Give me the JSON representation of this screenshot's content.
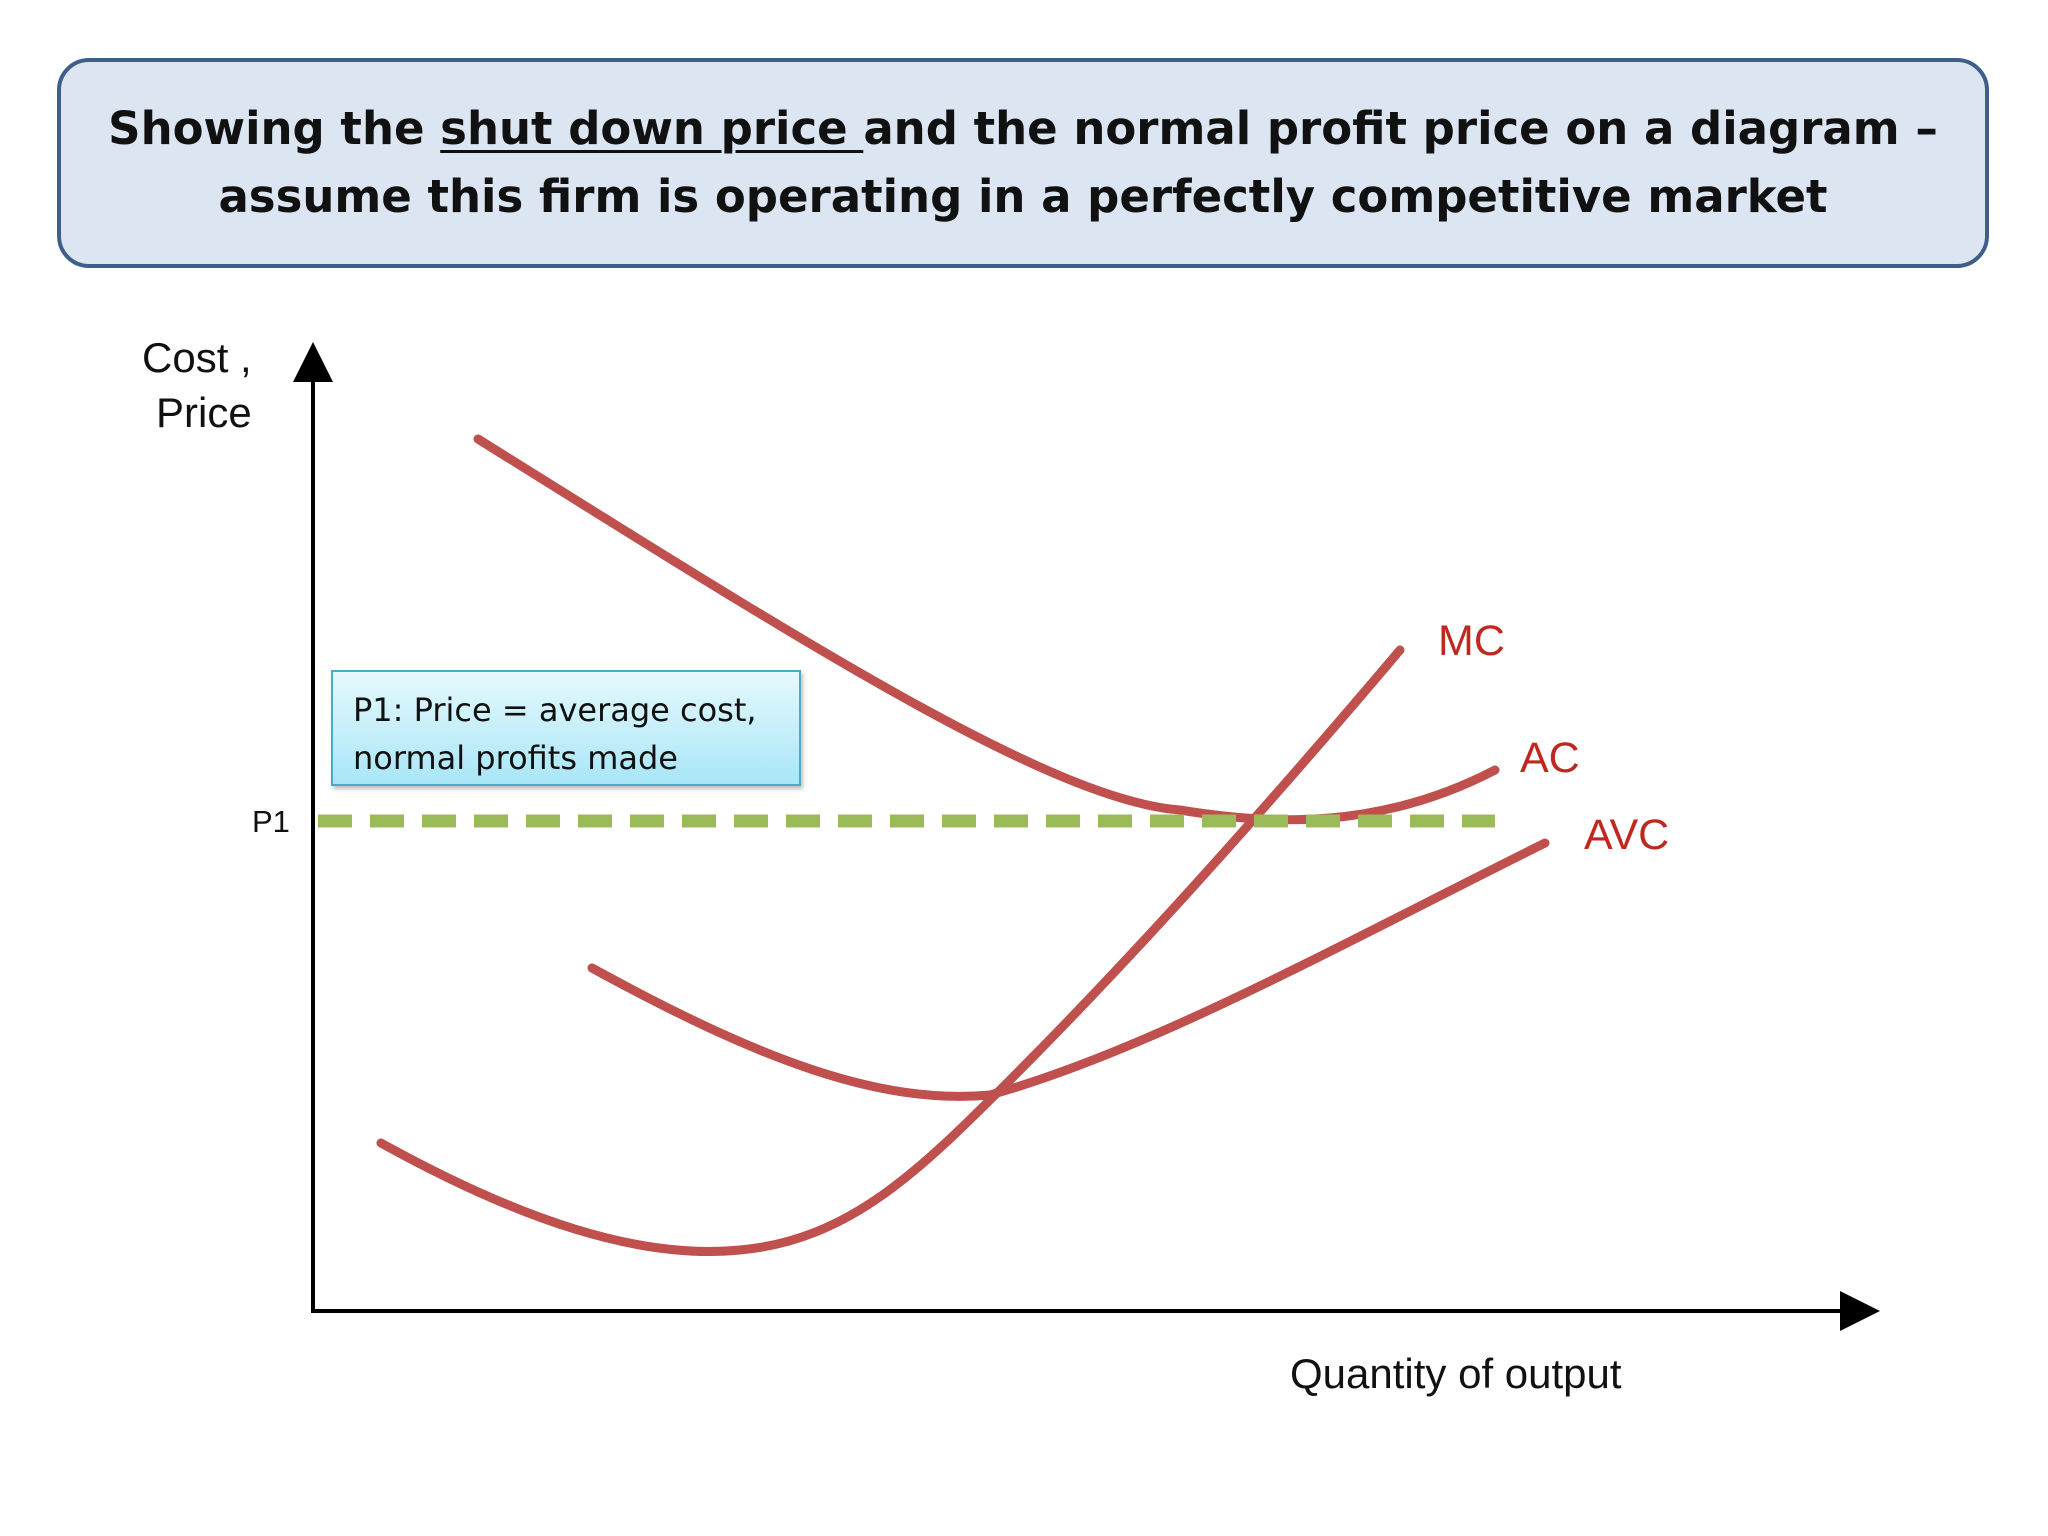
{
  "title": {
    "line1_before": "Showing the ",
    "line1_underlined": "shut down price ",
    "line1_after": "and the normal profit price on a diagram –",
    "line2": "assume this firm is operating in a perfectly competitive market"
  },
  "axes": {
    "y_label_line1": "Cost ,",
    "y_label_line2": "Price",
    "x_label": "Quantity of output"
  },
  "price_levels": {
    "p1_label": "P1"
  },
  "curves": {
    "mc_label": "MC",
    "ac_label": "AC",
    "avc_label": "AVC"
  },
  "callout": {
    "line1": "P1: Price = average cost,",
    "line2": "normal profits made"
  },
  "colors": {
    "curve": "#c0504d",
    "curve_label": "#c0281f",
    "price_line": "#9bbb59",
    "title_fill": "#dce6f2",
    "title_border": "#3e5f8a"
  }
}
